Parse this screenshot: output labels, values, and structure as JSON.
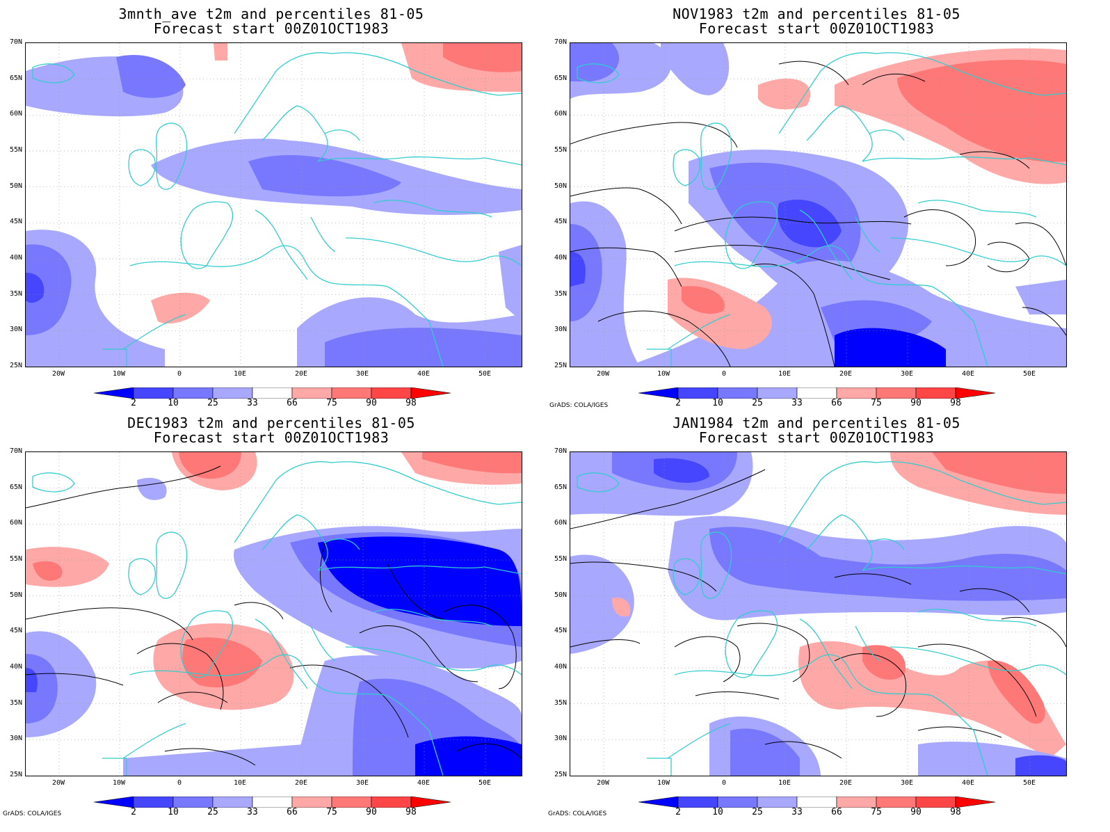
{
  "panels": [
    {
      "id": "p1",
      "title1": "3mnth_ave t2m and percentiles 81-05",
      "title2": "Forecast start 00Z01OCT1983",
      "credit": ""
    },
    {
      "id": "p2",
      "title1": "NOV1983 t2m and percentiles 81-05",
      "title2": "Forecast start 00Z01OCT1983",
      "credit": "GrADS: COLA/IGES"
    },
    {
      "id": "p3",
      "title1": "DEC1983 t2m and percentiles 81-05",
      "title2": "Forecast start 00Z01OCT1983",
      "credit": "GrADS: COLA/IGES"
    },
    {
      "id": "p4",
      "title1": "JAN1984 t2m and percentiles 81-05",
      "title2": "Forecast start 00Z01OCT1983",
      "credit": "GrADS: COLA/IGES"
    }
  ],
  "lat_labels": [
    "70N",
    "65N",
    "60N",
    "55N",
    "50N",
    "45N",
    "40N",
    "35N",
    "30N",
    "25N"
  ],
  "lon_labels": [
    "20W",
    "10W",
    "0",
    "10E",
    "20E",
    "30E",
    "40E",
    "50E"
  ],
  "colorbar": {
    "labels": [
      "2",
      "10",
      "25",
      "33",
      "66",
      "75",
      "90",
      "98"
    ],
    "colors": [
      "#0000ff",
      "#4646ff",
      "#7878ff",
      "#a8a8ff",
      "#ffffff",
      "#ffa8a8",
      "#ff7878",
      "#ff4646",
      "#ff0000"
    ]
  },
  "colors": {
    "coast": "#33cccc",
    "contour": "#000000",
    "grid": "#999999"
  }
}
